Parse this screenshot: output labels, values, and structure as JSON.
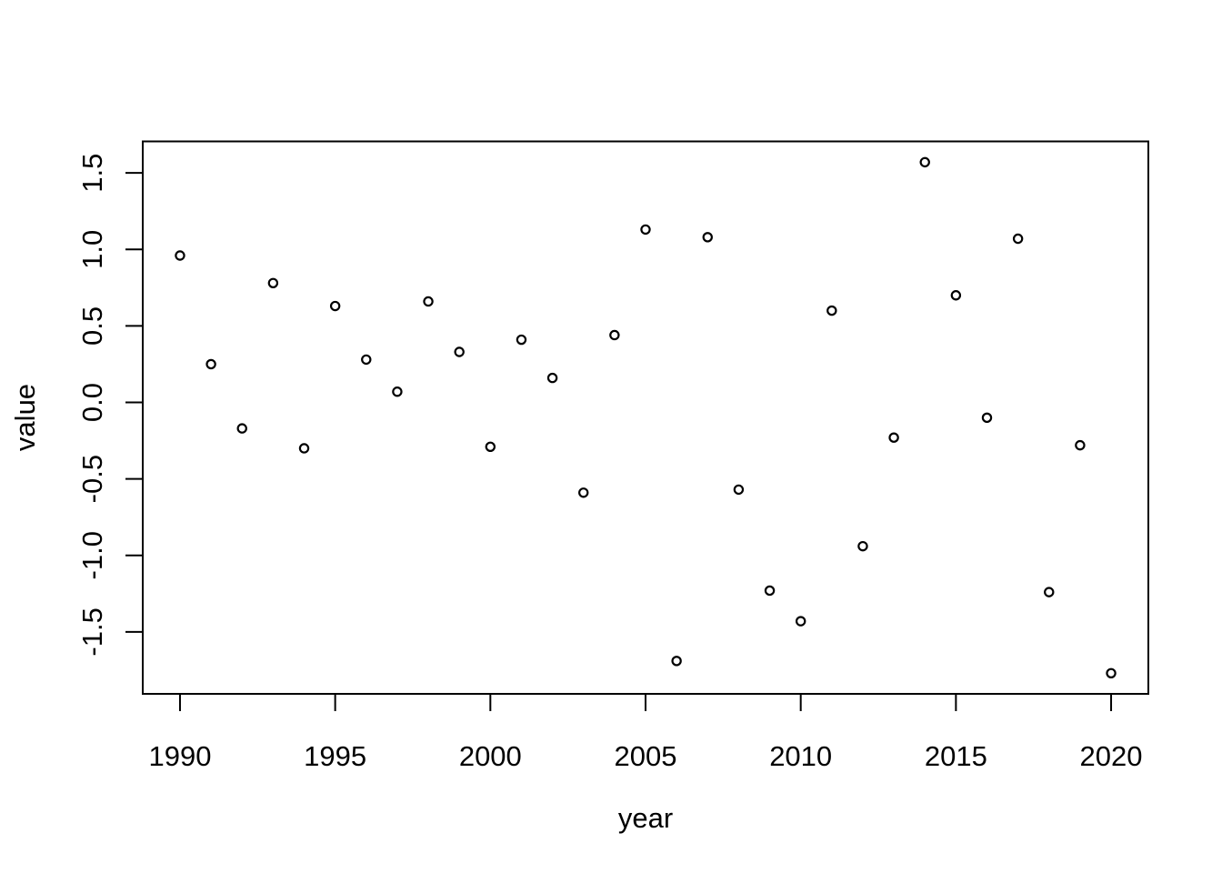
{
  "chart_data": {
    "type": "scatter",
    "title": "",
    "xlabel": "year",
    "ylabel": "value",
    "x": [
      1990,
      1991,
      1992,
      1993,
      1994,
      1995,
      1996,
      1997,
      1998,
      1999,
      2000,
      2001,
      2002,
      2003,
      2004,
      2005,
      2006,
      2007,
      2008,
      2009,
      2010,
      2011,
      2012,
      2013,
      2014,
      2015,
      2016,
      2017,
      2018,
      2019,
      2020
    ],
    "y": [
      0.96,
      0.25,
      -0.17,
      0.78,
      -0.3,
      0.63,
      0.28,
      0.07,
      0.66,
      0.33,
      -0.29,
      0.41,
      0.16,
      -0.59,
      0.44,
      1.13,
      -1.69,
      1.08,
      -0.57,
      -1.23,
      -1.43,
      0.6,
      -0.94,
      -0.23,
      1.57,
      0.7,
      -0.1,
      1.07,
      -1.24,
      -0.28,
      -1.77
    ],
    "x_ticks": [
      "1990",
      "1995",
      "2000",
      "2005",
      "2010",
      "2015",
      "2020"
    ],
    "y_ticks": [
      "1.5",
      "1.0",
      "0.5",
      "0.0",
      "-0.5",
      "-1.0",
      "-1.5"
    ],
    "xlim": [
      1988.8,
      2021.2
    ],
    "ylim": [
      -1.905,
      1.706
    ],
    "grid": false,
    "legend": null,
    "marker": "open-circle",
    "colors": {
      "points": "#000000",
      "axis": "#000000",
      "background": "#ffffff"
    }
  }
}
